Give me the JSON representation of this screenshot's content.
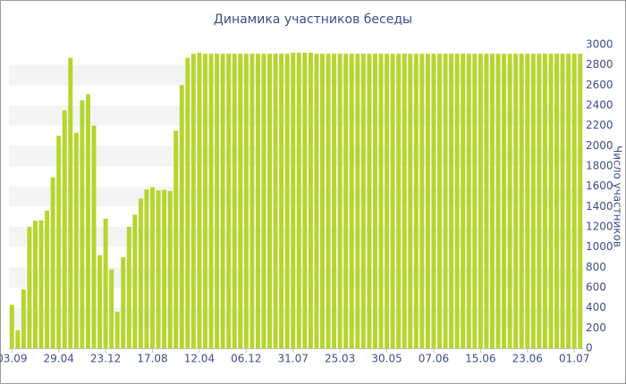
{
  "chart_data": {
    "type": "bar",
    "title": "Динамика участников беседы",
    "y_label": "Число участников",
    "categories": [
      "03.09",
      null,
      null,
      null,
      null,
      null,
      null,
      null,
      "29.04",
      null,
      null,
      null,
      null,
      null,
      null,
      null,
      "23.12",
      null,
      null,
      null,
      null,
      null,
      null,
      null,
      "17.08",
      null,
      null,
      null,
      null,
      null,
      null,
      null,
      "12.04",
      null,
      null,
      null,
      null,
      null,
      null,
      null,
      "06.12",
      null,
      null,
      null,
      null,
      null,
      null,
      null,
      "31.07",
      null,
      null,
      null,
      null,
      null,
      null,
      null,
      "25.03",
      null,
      null,
      null,
      null,
      null,
      null,
      null,
      "30.05",
      null,
      null,
      null,
      null,
      null,
      null,
      null,
      "07.06",
      null,
      null,
      null,
      null,
      null,
      null,
      null,
      "15.06",
      null,
      null,
      null,
      null,
      null,
      null,
      null,
      "23.06",
      null,
      null,
      null,
      null,
      null,
      null,
      null,
      "01.07",
      null
    ],
    "values": [
      430,
      180,
      580,
      1200,
      1260,
      1265,
      1360,
      1690,
      2100,
      2350,
      2870,
      2130,
      2450,
      2510,
      2200,
      920,
      1280,
      780,
      360,
      900,
      1200,
      1320,
      1480,
      1570,
      1590,
      1560,
      1565,
      1555,
      2150,
      2600,
      2870,
      2910,
      2920,
      2910,
      2910,
      2910,
      2910,
      2910,
      2910,
      2910,
      2910,
      2910,
      2910,
      2910,
      2910,
      2910,
      2910,
      2910,
      2920,
      2920,
      2920,
      2920,
      2910,
      2910,
      2910,
      2910,
      2910,
      2910,
      2910,
      2910,
      2910,
      2910,
      2910,
      2910,
      2910,
      2910,
      2910,
      2910,
      2910,
      2910,
      2910,
      2910,
      2910,
      2910,
      2910,
      2910,
      2910,
      2910,
      2910,
      2910,
      2910,
      2910,
      2910,
      2910,
      2910,
      2910,
      2910,
      2910,
      2910,
      2910,
      2910,
      2910,
      2910,
      2910,
      2910,
      2910,
      2910,
      2910
    ],
    "color": "#b5d62e",
    "ylim": [
      0,
      3000
    ],
    "yticks": [
      0,
      200,
      400,
      600,
      800,
      1000,
      1200,
      1400,
      1600,
      1800,
      2000,
      2200,
      2400,
      2600,
      2800,
      3000
    ],
    "grid": true
  }
}
